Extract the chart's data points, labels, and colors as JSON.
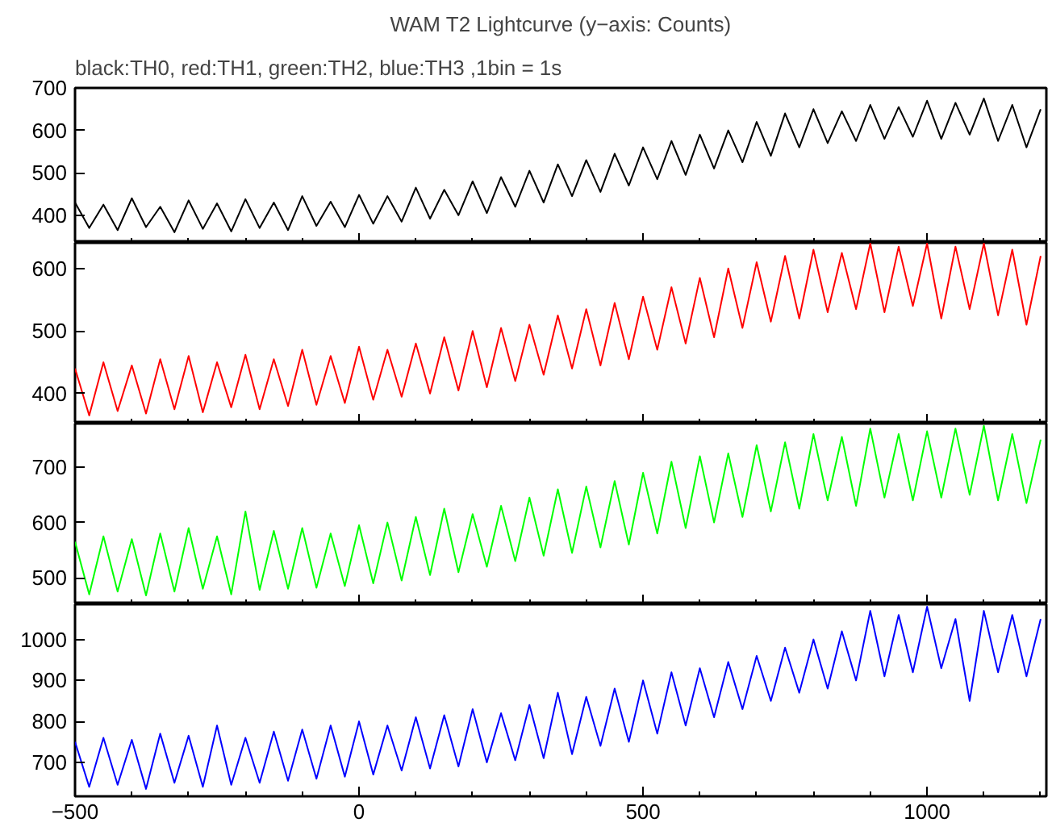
{
  "chart_data": [
    {
      "type": "line",
      "title": "WAM T2 Lightcurve (y−axis: Counts)",
      "subtitle": "black:TH0, red:TH1, green:TH2, blue:TH3 ,1bin = 1s",
      "x": [
        -500,
        -475,
        -450,
        -425,
        -400,
        -375,
        -350,
        -325,
        -300,
        -275,
        -250,
        -225,
        -200,
        -175,
        -150,
        -125,
        -100,
        -75,
        -50,
        -25,
        0,
        25,
        50,
        75,
        100,
        125,
        150,
        175,
        200,
        225,
        250,
        275,
        300,
        325,
        350,
        375,
        400,
        425,
        450,
        475,
        500,
        525,
        550,
        575,
        600,
        625,
        650,
        675,
        700,
        725,
        750,
        775,
        800,
        825,
        850,
        875,
        900,
        925,
        950,
        975,
        1000,
        1025,
        1050,
        1075,
        1100,
        1125,
        1150,
        1175,
        1200
      ],
      "series": [
        {
          "color": "#000000",
          "values": [
            430,
            370,
            425,
            365,
            440,
            372,
            420,
            360,
            435,
            368,
            428,
            362,
            438,
            370,
            430,
            365,
            445,
            375,
            432,
            372,
            448,
            380,
            445,
            385,
            465,
            392,
            460,
            400,
            480,
            405,
            490,
            420,
            505,
            430,
            520,
            445,
            530,
            455,
            545,
            470,
            560,
            485,
            575,
            495,
            590,
            510,
            600,
            525,
            620,
            540,
            640,
            560,
            650,
            570,
            645,
            575,
            660,
            580,
            655,
            585,
            670,
            580,
            665,
            590,
            675,
            575,
            660,
            560,
            650
          ]
        }
      ],
      "xlim": [
        -500,
        1210
      ],
      "xticks": [
        -500,
        0,
        500,
        1000
      ],
      "ylim": [
        335,
        700
      ],
      "yticks": [
        400,
        500,
        600,
        700
      ],
      "tick_labels": "y",
      "grid": false
    },
    {
      "type": "line",
      "x": [
        -500,
        -475,
        -450,
        -425,
        -400,
        -375,
        -350,
        -325,
        -300,
        -275,
        -250,
        -225,
        -200,
        -175,
        -150,
        -125,
        -100,
        -75,
        -50,
        -25,
        0,
        25,
        50,
        75,
        100,
        125,
        150,
        175,
        200,
        225,
        250,
        275,
        300,
        325,
        350,
        375,
        400,
        425,
        450,
        475,
        500,
        525,
        550,
        575,
        600,
        625,
        650,
        675,
        700,
        725,
        750,
        775,
        800,
        825,
        850,
        875,
        900,
        925,
        950,
        975,
        1000,
        1025,
        1050,
        1075,
        1100,
        1125,
        1150,
        1175,
        1200
      ],
      "series": [
        {
          "color": "#ff0000",
          "values": [
            440,
            365,
            450,
            372,
            445,
            368,
            455,
            375,
            460,
            370,
            450,
            378,
            462,
            375,
            455,
            380,
            470,
            382,
            460,
            385,
            475,
            390,
            470,
            395,
            480,
            400,
            490,
            405,
            500,
            410,
            505,
            420,
            510,
            430,
            525,
            440,
            535,
            445,
            545,
            455,
            555,
            470,
            570,
            480,
            585,
            490,
            600,
            505,
            610,
            515,
            620,
            520,
            630,
            530,
            625,
            535,
            640,
            530,
            635,
            540,
            640,
            520,
            635,
            535,
            640,
            525,
            630,
            510,
            620
          ]
        }
      ],
      "xlim": [
        -500,
        1210
      ],
      "xticks": [
        -500,
        0,
        500,
        1000
      ],
      "ylim": [
        352,
        641
      ],
      "yticks": [
        400,
        500,
        600
      ],
      "tick_labels": "y",
      "grid": false
    },
    {
      "type": "line",
      "x": [
        -500,
        -475,
        -450,
        -425,
        -400,
        -375,
        -350,
        -325,
        -300,
        -275,
        -250,
        -225,
        -200,
        -175,
        -150,
        -125,
        -100,
        -75,
        -50,
        -25,
        0,
        25,
        50,
        75,
        100,
        125,
        150,
        175,
        200,
        225,
        250,
        275,
        300,
        325,
        350,
        375,
        400,
        425,
        450,
        475,
        500,
        525,
        550,
        575,
        600,
        625,
        650,
        675,
        700,
        725,
        750,
        775,
        800,
        825,
        850,
        875,
        900,
        925,
        950,
        975,
        1000,
        1025,
        1050,
        1075,
        1100,
        1125,
        1150,
        1175,
        1200
      ],
      "series": [
        {
          "color": "#00ff00",
          "values": [
            565,
            470,
            575,
            475,
            570,
            468,
            580,
            475,
            590,
            480,
            575,
            470,
            620,
            478,
            585,
            480,
            590,
            482,
            580,
            485,
            595,
            490,
            600,
            495,
            610,
            505,
            625,
            510,
            615,
            520,
            630,
            530,
            645,
            540,
            660,
            545,
            665,
            555,
            675,
            560,
            690,
            580,
            710,
            590,
            720,
            600,
            725,
            610,
            740,
            620,
            745,
            625,
            760,
            640,
            755,
            630,
            770,
            645,
            760,
            640,
            765,
            645,
            770,
            650,
            775,
            640,
            760,
            635,
            750
          ]
        }
      ],
      "xlim": [
        -500,
        1210
      ],
      "xticks": [
        -500,
        0,
        500,
        1000
      ],
      "ylim": [
        452,
        779
      ],
      "yticks": [
        500,
        600,
        700
      ],
      "tick_labels": "y",
      "grid": false
    },
    {
      "type": "line",
      "x": [
        -500,
        -475,
        -450,
        -425,
        -400,
        -375,
        -350,
        -325,
        -300,
        -275,
        -250,
        -225,
        -200,
        -175,
        -150,
        -125,
        -100,
        -75,
        -50,
        -25,
        0,
        25,
        50,
        75,
        100,
        125,
        150,
        175,
        200,
        225,
        250,
        275,
        300,
        325,
        350,
        375,
        400,
        425,
        450,
        475,
        500,
        525,
        550,
        575,
        600,
        625,
        650,
        675,
        700,
        725,
        750,
        775,
        800,
        825,
        850,
        875,
        900,
        925,
        950,
        975,
        1000,
        1025,
        1050,
        1075,
        1100,
        1125,
        1150,
        1175,
        1200
      ],
      "series": [
        {
          "color": "#0000ff",
          "values": [
            750,
            640,
            760,
            645,
            755,
            635,
            770,
            650,
            765,
            640,
            790,
            645,
            760,
            650,
            775,
            655,
            780,
            660,
            790,
            665,
            800,
            670,
            790,
            680,
            810,
            685,
            815,
            690,
            830,
            700,
            820,
            705,
            840,
            710,
            870,
            720,
            860,
            740,
            880,
            750,
            900,
            770,
            920,
            790,
            930,
            810,
            945,
            830,
            960,
            850,
            980,
            870,
            1000,
            880,
            1020,
            900,
            1070,
            910,
            1060,
            920,
            1080,
            930,
            1050,
            850,
            1070,
            920,
            1060,
            910,
            1050
          ]
        }
      ],
      "xlim": [
        -500,
        1210
      ],
      "xticks": [
        -500,
        0,
        500,
        1000
      ],
      "ylim": [
        617,
        1086
      ],
      "yticks": [
        700,
        800,
        900,
        1000
      ],
      "grid": false
    }
  ]
}
